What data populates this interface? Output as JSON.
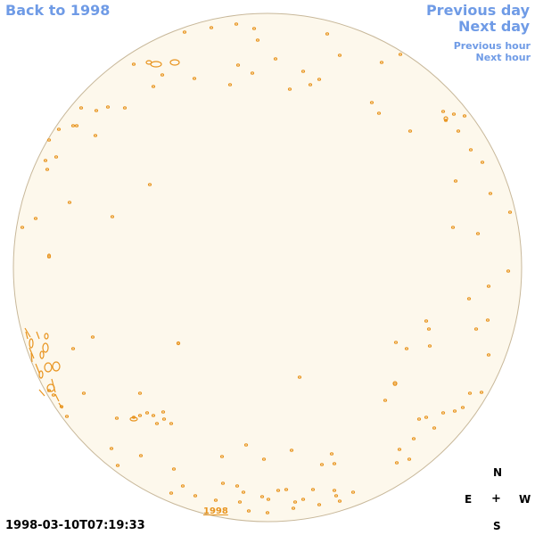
{
  "nav": {
    "back_label": "Back to 1998",
    "prev_day_label": "Previous day",
    "next_day_label": "Next day",
    "prev_hour_label": "Previous hour",
    "next_hour_label": "Next hour"
  },
  "timestamp": "1998-03-10T07:19:33",
  "year_label": "1998",
  "compass": {
    "north": "N",
    "east": "E",
    "center": "+",
    "west": "W",
    "south": "S"
  },
  "colors": {
    "link": "#6f9be6",
    "disc_fill": "#fdf8ec",
    "disc_stroke": "#c8b89a",
    "contour": "#e8941f"
  }
}
